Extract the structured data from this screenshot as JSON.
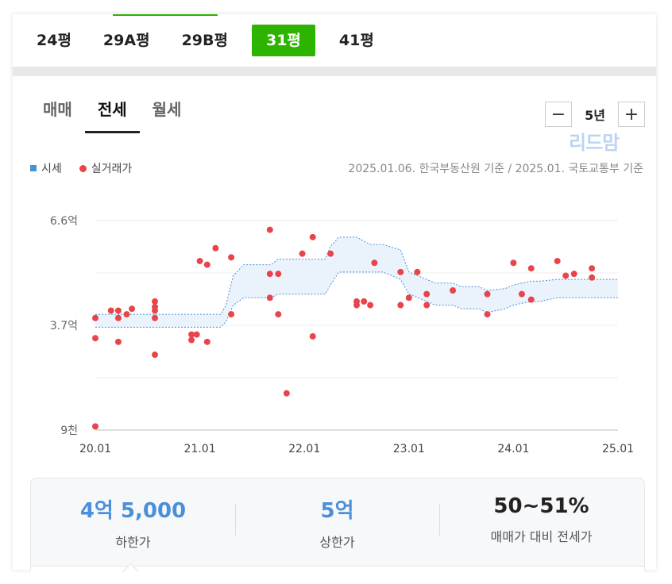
{
  "pyeong_tabs": [
    {
      "label": "24평",
      "active": false
    },
    {
      "label": "29A평",
      "active": false
    },
    {
      "label": "29B평",
      "active": false
    },
    {
      "label": "31평",
      "active": true
    },
    {
      "label": "41평",
      "active": false
    }
  ],
  "trade_tabs": [
    {
      "label": "매매",
      "active": false
    },
    {
      "label": "전세",
      "active": true
    },
    {
      "label": "월세",
      "active": false
    }
  ],
  "period": {
    "minus": "−",
    "value": "5년",
    "plus": "+"
  },
  "legend": {
    "market": "시세",
    "actual": "실거래가"
  },
  "source_text": "2025.01.06. 한국부동산원 기준 / 2025.01. 국토교통부 기준",
  "watermark": "리드맘",
  "colors": {
    "accent": "#2db400",
    "band_stroke": "#4a90d9",
    "band_fill": "#eaf3fc",
    "dot": "#e8454b",
    "stat_blue": "#4a90d9"
  },
  "chart_data": {
    "type": "scatter",
    "x_ticks": [
      "20.01",
      "21.01",
      "22.01",
      "23.01",
      "24.01",
      "25.01"
    ],
    "y_ticks": [
      "6.6억",
      "3.7억",
      "9천"
    ],
    "ylim": [
      0.9,
      6.6
    ],
    "xlim": [
      2020.0,
      2025.0
    ],
    "x_unit": "year",
    "y_unit": "억",
    "series": [
      {
        "name": "시세",
        "kind": "band",
        "x": [
          2020.0,
          2020.5,
          2021.0,
          2021.2,
          2021.25,
          2021.32,
          2021.42,
          2021.5,
          2021.68,
          2021.75,
          2022.2,
          2022.25,
          2022.33,
          2022.5,
          2022.63,
          2022.75,
          2022.92,
          2023.0,
          2023.17,
          2023.25,
          2023.42,
          2023.5,
          2023.67,
          2023.75,
          2023.92,
          2024.0,
          2024.17,
          2024.25,
          2024.42,
          2024.5,
          2024.67,
          2024.75,
          2025.0
        ],
        "lower": [
          3.7,
          3.7,
          3.7,
          3.7,
          3.85,
          4.3,
          4.5,
          4.5,
          4.5,
          4.6,
          4.6,
          4.85,
          5.2,
          5.2,
          5.2,
          5.2,
          5.0,
          4.6,
          4.4,
          4.3,
          4.3,
          4.2,
          4.2,
          4.1,
          4.2,
          4.3,
          4.4,
          4.4,
          4.5,
          4.5,
          4.5,
          4.5,
          4.5
        ],
        "upper": [
          4.05,
          4.05,
          4.05,
          4.05,
          4.3,
          5.1,
          5.4,
          5.4,
          5.4,
          5.55,
          5.55,
          5.9,
          6.15,
          6.15,
          5.95,
          5.95,
          5.8,
          5.2,
          5.0,
          4.9,
          4.9,
          4.8,
          4.8,
          4.7,
          4.75,
          4.85,
          4.95,
          4.95,
          5.0,
          5.0,
          5.0,
          5.0,
          5.0
        ]
      },
      {
        "name": "실거래가",
        "kind": "points",
        "points": [
          [
            2020.0,
            1.0
          ],
          [
            2020.0,
            3.4
          ],
          [
            2020.0,
            3.95
          ],
          [
            2020.15,
            4.15
          ],
          [
            2020.22,
            4.15
          ],
          [
            2020.22,
            3.95
          ],
          [
            2020.22,
            3.3
          ],
          [
            2020.3,
            4.05
          ],
          [
            2020.35,
            4.2
          ],
          [
            2020.57,
            4.4
          ],
          [
            2020.57,
            4.25
          ],
          [
            2020.57,
            4.15
          ],
          [
            2020.57,
            3.95
          ],
          [
            2020.57,
            2.95
          ],
          [
            2020.92,
            3.5
          ],
          [
            2020.92,
            3.35
          ],
          [
            2020.97,
            3.5
          ],
          [
            2021.0,
            5.5
          ],
          [
            2021.07,
            5.4
          ],
          [
            2021.07,
            3.3
          ],
          [
            2021.15,
            5.85
          ],
          [
            2021.3,
            5.6
          ],
          [
            2021.3,
            4.05
          ],
          [
            2021.67,
            6.35
          ],
          [
            2021.67,
            5.15
          ],
          [
            2021.67,
            4.5
          ],
          [
            2021.75,
            5.15
          ],
          [
            2021.75,
            4.05
          ],
          [
            2021.83,
            1.9
          ],
          [
            2021.98,
            5.7
          ],
          [
            2022.08,
            6.15
          ],
          [
            2022.08,
            3.45
          ],
          [
            2022.25,
            5.7
          ],
          [
            2022.5,
            4.4
          ],
          [
            2022.5,
            4.3
          ],
          [
            2022.57,
            4.4
          ],
          [
            2022.63,
            4.3
          ],
          [
            2022.67,
            5.45
          ],
          [
            2022.92,
            5.2
          ],
          [
            2022.92,
            4.3
          ],
          [
            2023.0,
            4.5
          ],
          [
            2023.08,
            5.2
          ],
          [
            2023.17,
            4.6
          ],
          [
            2023.17,
            4.3
          ],
          [
            2023.42,
            4.7
          ],
          [
            2023.75,
            4.6
          ],
          [
            2023.75,
            4.05
          ],
          [
            2024.0,
            5.45
          ],
          [
            2024.08,
            4.6
          ],
          [
            2024.17,
            5.3
          ],
          [
            2024.17,
            4.45
          ],
          [
            2024.42,
            5.5
          ],
          [
            2024.5,
            5.1
          ],
          [
            2024.58,
            5.15
          ],
          [
            2024.75,
            5.05
          ],
          [
            2024.75,
            5.3
          ]
        ]
      }
    ]
  },
  "stats": [
    {
      "value": "4억 5,000",
      "label": "하한가",
      "color": "#4a90d9"
    },
    {
      "value": "5억",
      "label": "상한가",
      "color": "#4a90d9"
    },
    {
      "value": "50~51%",
      "label": "매매가 대비 전세가",
      "color": "#222"
    }
  ]
}
